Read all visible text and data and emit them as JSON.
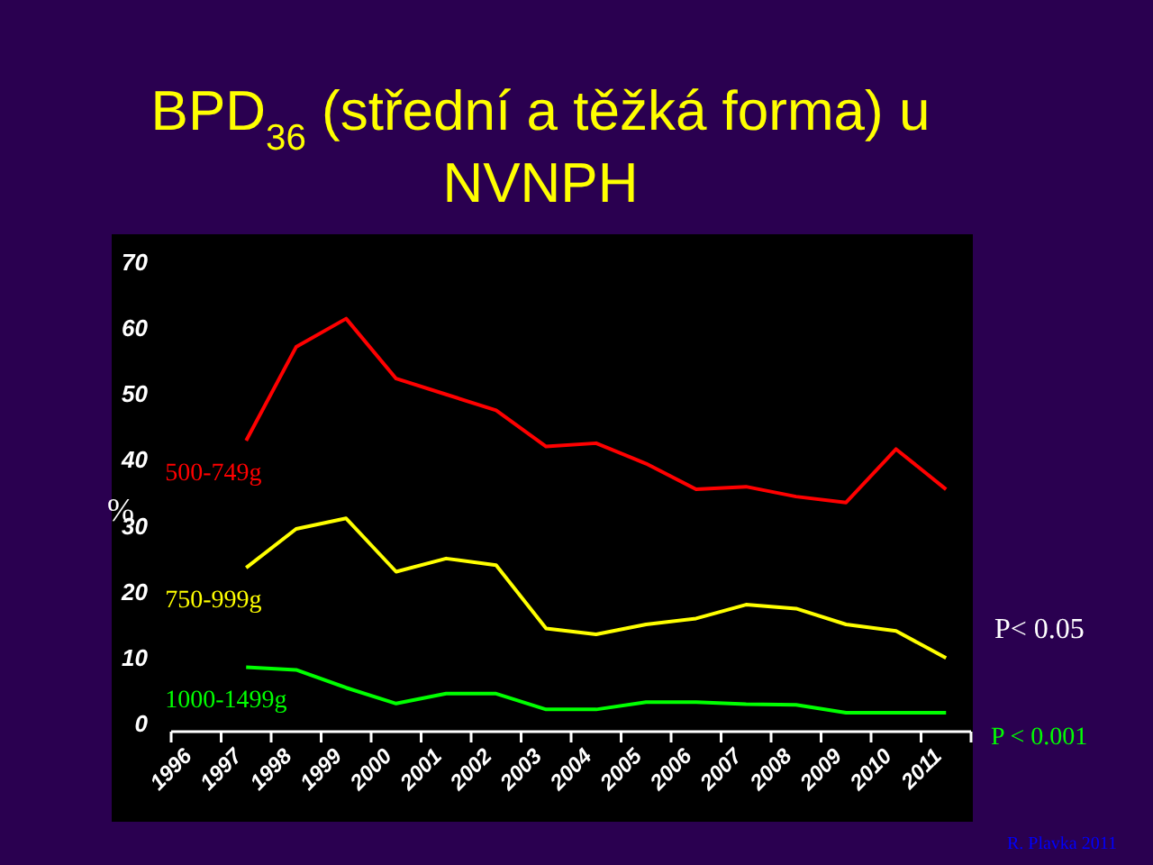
{
  "chart_data": {
    "type": "line",
    "title": "BPD$_{36}$ (střední a těžká forma) u NVNPH",
    "ylabel": "%",
    "categories": [
      "1996",
      "1997",
      "1998",
      "1999",
      "2000",
      "2001",
      "2002",
      "2003",
      "2004",
      "2005",
      "2006",
      "2007",
      "2008",
      "2009",
      "2010",
      "2011"
    ],
    "series": [
      {
        "name": "500-749g",
        "color": "#ff0000",
        "values": [
          null,
          42.8,
          57,
          61.3,
          52.2,
          49.8,
          47.4,
          41.9,
          42.4,
          39.3,
          35.4,
          35.8,
          34.3,
          33.4,
          41.5,
          35.4
        ]
      },
      {
        "name": "750-999g",
        "color": "#ffff00",
        "values": [
          null,
          23.5,
          29.4,
          31,
          22.9,
          24.9,
          23.9,
          14.3,
          13.4,
          14.9,
          15.8,
          17.9,
          17.3,
          14.9,
          13.9,
          9.8
        ]
      },
      {
        "name": "1000-1499g",
        "color": "#00ff00",
        "values": [
          null,
          8.4,
          8,
          5.3,
          2.9,
          4.4,
          4.4,
          2,
          2,
          3.1,
          3.1,
          2.8,
          2.7,
          1.5,
          1.5,
          1.5
        ]
      }
    ],
    "ylim": [
      0,
      70
    ],
    "yticks": [
      0,
      10,
      20,
      30,
      40,
      50,
      60,
      70
    ],
    "grid": false,
    "legend": false,
    "marker": "none",
    "line_style": "solid",
    "annotations": [
      "P< 0.05",
      "P < 0.001",
      "R. Plavka 2011"
    ]
  }
}
